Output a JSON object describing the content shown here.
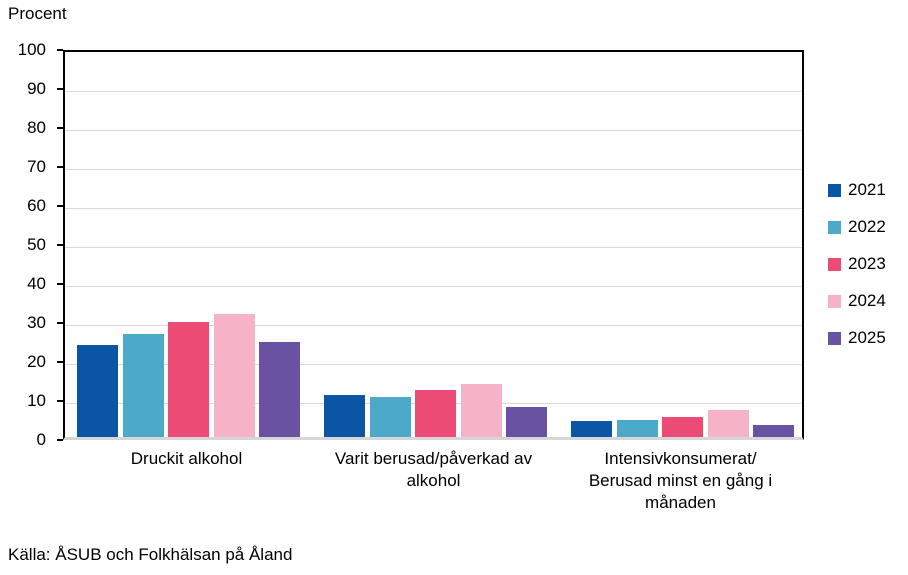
{
  "chart_data": {
    "type": "bar",
    "title": "Procent",
    "categories": [
      "Druckit alkohol",
      "Varit berusad/påverkad av\nalkohol",
      "Intensivkonsumerat/\nBerusad minst en gång i\nmånaden"
    ],
    "series": [
      {
        "name": "2021",
        "color": "#0b56a4",
        "values": [
          23.5,
          10.8,
          4.0
        ]
      },
      {
        "name": "2022",
        "color": "#4da9c9",
        "values": [
          26.4,
          10.2,
          4.4
        ]
      },
      {
        "name": "2023",
        "color": "#ec4b76",
        "values": [
          29.5,
          12.0,
          5.1
        ]
      },
      {
        "name": "2024",
        "color": "#f6b3c7",
        "values": [
          31.5,
          13.7,
          7.0
        ]
      },
      {
        "name": "2025",
        "color": "#6a52a2",
        "values": [
          24.3,
          7.6,
          3.0
        ]
      }
    ],
    "ylabel": "Procent",
    "ylim": [
      0,
      100
    ],
    "ytick_step": 10,
    "yticks": [
      0,
      10,
      20,
      30,
      40,
      50,
      60,
      70,
      80,
      90,
      100
    ],
    "grid": true,
    "legend_position": "right",
    "source": "Källa: ÅSUB och Folkhälsan på Åland"
  },
  "colors": {
    "gridline": "#d9d9d9",
    "baseline": "#d6d6d6",
    "axis": "#000000",
    "text": "#000000",
    "background": "#ffffff"
  }
}
